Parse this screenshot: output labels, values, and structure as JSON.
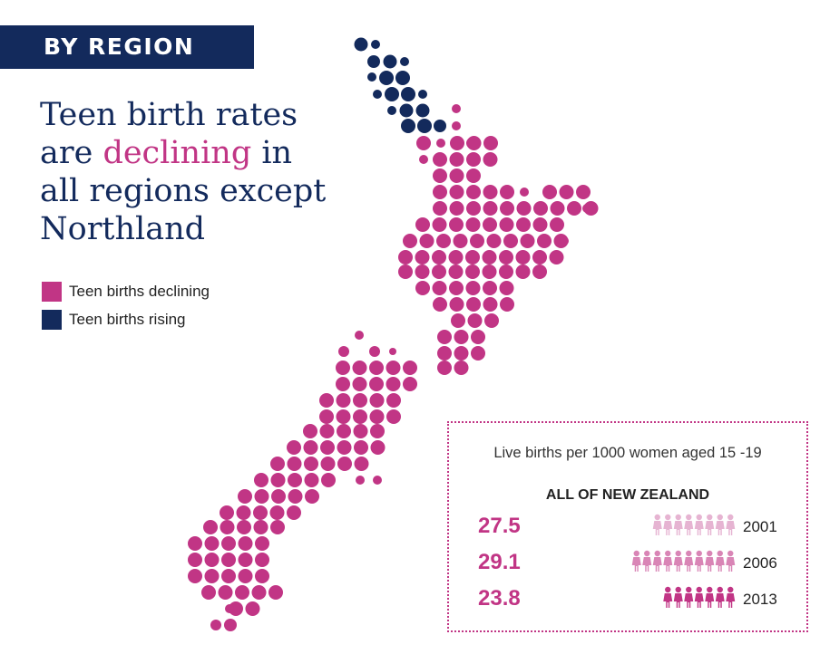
{
  "section_tag": "BY REGION",
  "headline": {
    "part1": "Teen birth rates",
    "part2": "are ",
    "highlight": "declining",
    "part3": " in",
    "part4": "all regions except",
    "part5": "Northland"
  },
  "legend": [
    {
      "label": "Teen births declining",
      "color": "#c13585"
    },
    {
      "label": "Teen births rising",
      "color": "#132a5c"
    }
  ],
  "colors": {
    "navy": "#132a5c",
    "magenta": "#c13585",
    "faded_2001": "#e6b4d2",
    "faded_2006": "#d985b6"
  },
  "icon_name": "person-icon",
  "chart_data": {
    "type": "pictogram",
    "title": "Live births per 1000 women aged 15 -19",
    "region": "ALL OF NEW ZEALAND",
    "series": [
      {
        "year": "2001",
        "value": 27.5,
        "label": "27.5"
      },
      {
        "year": "2006",
        "value": 29.1,
        "label": "29.1"
      },
      {
        "year": "2013",
        "value": 23.8,
        "label": "23.8"
      }
    ],
    "regions_by_trend": {
      "Northland": "rising",
      "all other regions": "declining"
    }
  }
}
